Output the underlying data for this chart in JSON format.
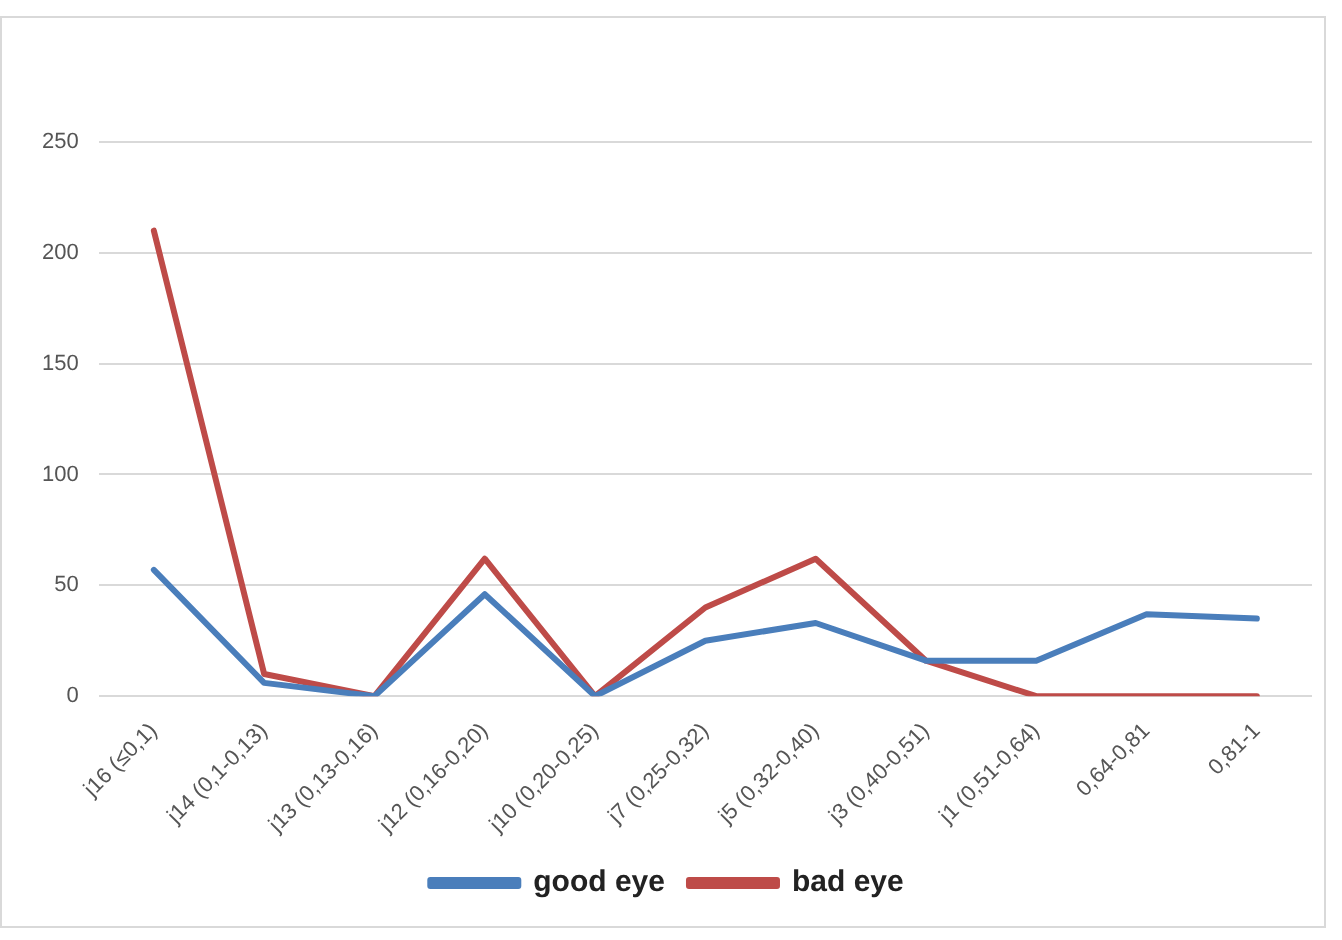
{
  "chart_data": {
    "type": "line",
    "categories": [
      "j16 (≤0,1)",
      "j14 (0,1-0,13)",
      "j13 (0,13-0,16)",
      "j12 (0,16-0,20)",
      "j10 (0,20-0,25)",
      "j7 (0,25-0,32)",
      "j5 (0,32-0,40)",
      "j3 (0,40-0,51)",
      "j1 (0,51-0,64)",
      "0,64-0,81",
      "0,81-1"
    ],
    "series": [
      {
        "name": "good eye",
        "color": "#4a7ebb",
        "values": [
          57,
          6,
          0,
          46,
          0,
          25,
          33,
          16,
          16,
          37,
          35
        ]
      },
      {
        "name": "bad eye",
        "color": "#be4b48",
        "values": [
          210,
          10,
          0,
          62,
          0,
          40,
          62,
          16,
          0,
          0,
          0
        ]
      }
    ],
    "ylim": [
      0,
      250
    ],
    "yticks": [
      0,
      50,
      100,
      150,
      200,
      250
    ],
    "grid": "y",
    "legend": "bottom",
    "marker": "none",
    "line_style": "solid"
  }
}
